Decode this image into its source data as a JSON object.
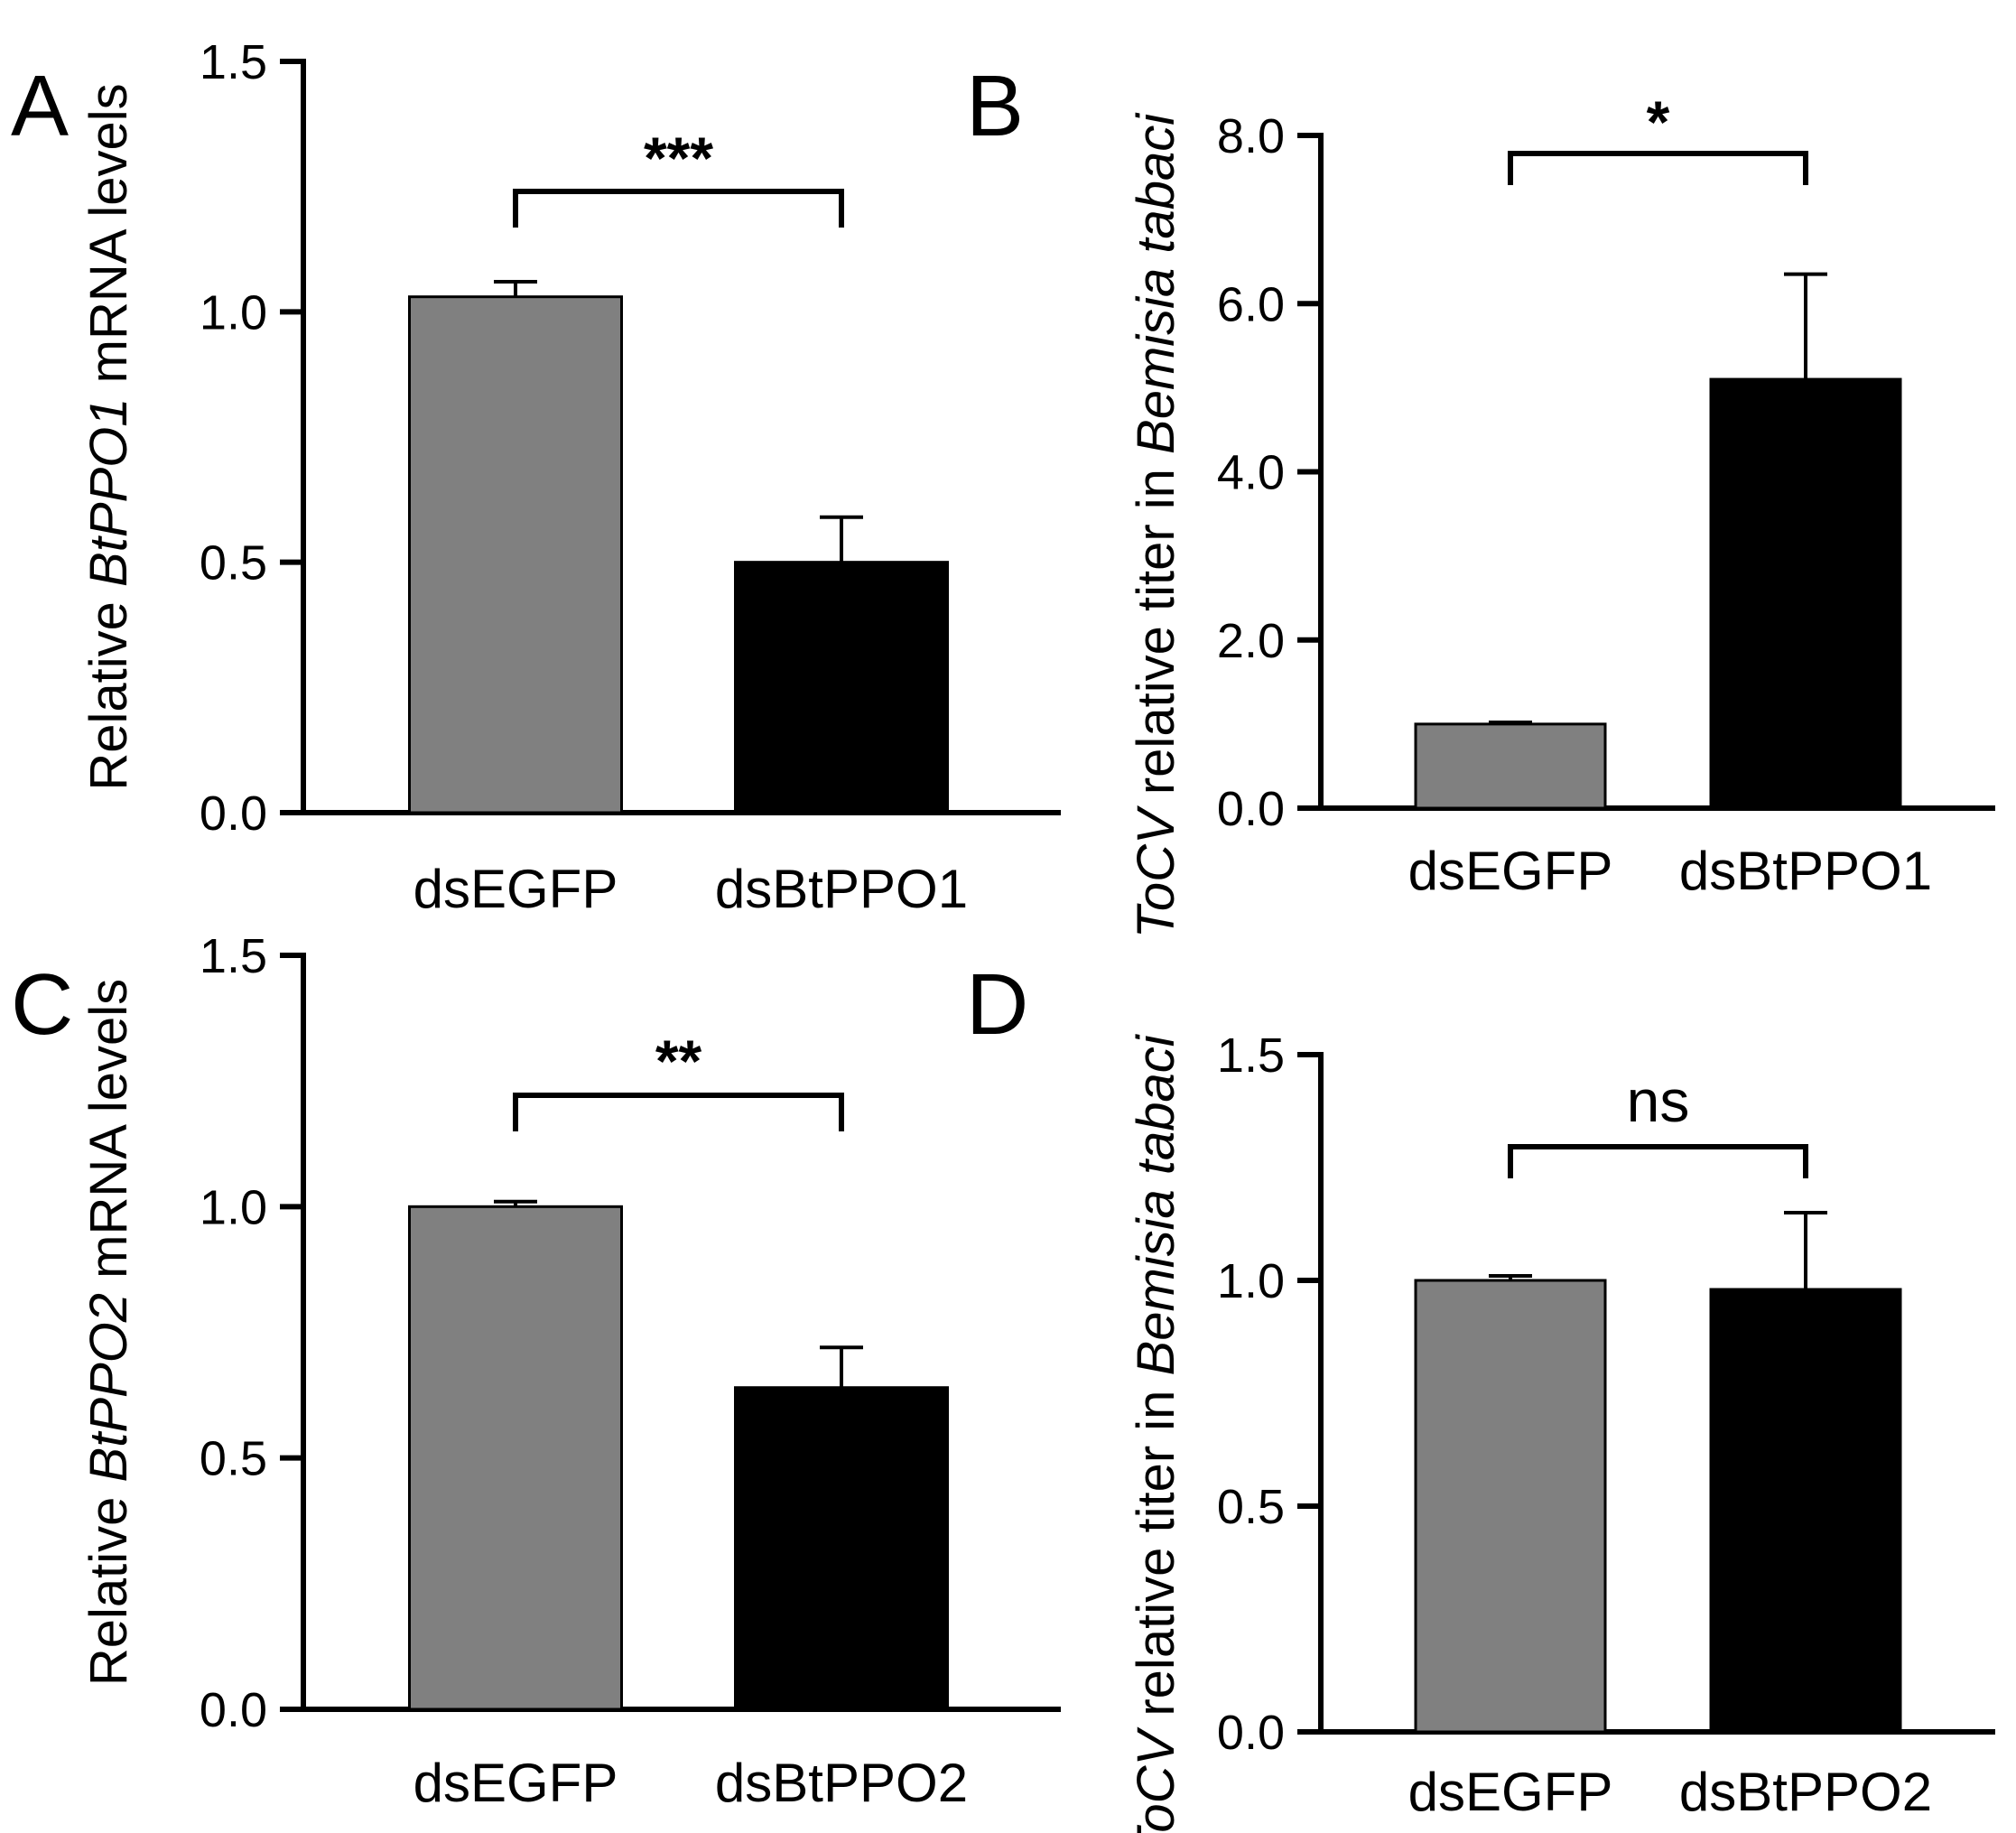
{
  "figure": {
    "panels": [
      {
        "letter": "A",
        "ylabel_parts": [
          {
            "text": "Relative ",
            "italic": false
          },
          {
            "text": "BtPPO1",
            "italic": true
          },
          {
            "text": " mRNA levels",
            "italic": false
          }
        ],
        "significance": "***"
      },
      {
        "letter": "B",
        "ylabel_parts": [
          {
            "text": "ToCV",
            "italic": true
          },
          {
            "text": " relative titer in ",
            "italic": false
          },
          {
            "text": "Bemisia tabaci",
            "italic": true
          }
        ],
        "significance": "*"
      },
      {
        "letter": "C",
        "ylabel_parts": [
          {
            "text": "Relative ",
            "italic": false
          },
          {
            "text": "BtPPO2",
            "italic": true
          },
          {
            "text": " mRNA levels",
            "italic": false
          }
        ],
        "significance": "**"
      },
      {
        "letter": "D",
        "ylabel_parts": [
          {
            "text": "ToCV",
            "italic": true
          },
          {
            "text": " relative titer in ",
            "italic": false
          },
          {
            "text": "Bemisia tabaci",
            "italic": true
          }
        ],
        "significance": "ns"
      }
    ]
  },
  "chart_data": [
    {
      "type": "bar",
      "panel": "A",
      "categories": [
        "dsEGFP",
        "dsBtPPO1"
      ],
      "values": [
        1.03,
        0.5
      ],
      "errors": [
        0.03,
        0.09
      ],
      "colors": [
        "#808080",
        "#000000"
      ],
      "ylim": [
        0,
        1.5
      ],
      "yticks": [
        0,
        0.5,
        1.0,
        1.5
      ],
      "ytick_labels": [
        "0.0",
        "0.5",
        "1.0",
        "1.5"
      ],
      "comparison": {
        "between": [
          0,
          1
        ],
        "label": "***"
      }
    },
    {
      "type": "bar",
      "panel": "B",
      "categories": [
        "dsEGFP",
        "dsBtPPO1"
      ],
      "values": [
        1.0,
        5.1
      ],
      "errors": [
        0.02,
        1.25
      ],
      "colors": [
        "#808080",
        "#000000"
      ],
      "ylim": [
        0,
        8
      ],
      "yticks": [
        0,
        2,
        4,
        6,
        8
      ],
      "ytick_labels": [
        "0.0",
        "2.0",
        "4.0",
        "6.0",
        "8.0"
      ],
      "comparison": {
        "between": [
          0,
          1
        ],
        "label": "*"
      }
    },
    {
      "type": "bar",
      "panel": "C",
      "categories": [
        "dsEGFP",
        "dsBtPPO2"
      ],
      "values": [
        1.0,
        0.64
      ],
      "errors": [
        0.01,
        0.08
      ],
      "colors": [
        "#808080",
        "#000000"
      ],
      "ylim": [
        0,
        1.5
      ],
      "yticks": [
        0,
        0.5,
        1.0,
        1.5
      ],
      "ytick_labels": [
        "0.0",
        "0.5",
        "1.0",
        "1.5"
      ],
      "comparison": {
        "between": [
          0,
          1
        ],
        "label": "**"
      }
    },
    {
      "type": "bar",
      "panel": "D",
      "categories": [
        "dsEGFP",
        "dsBtPPO2"
      ],
      "values": [
        1.0,
        0.98
      ],
      "errors": [
        0.01,
        0.17
      ],
      "colors": [
        "#808080",
        "#000000"
      ],
      "ylim": [
        0,
        1.5
      ],
      "yticks": [
        0,
        0.5,
        1.0,
        1.5
      ],
      "ytick_labels": [
        "0.0",
        "0.5",
        "1.0",
        "1.5"
      ],
      "comparison": {
        "between": [
          0,
          1
        ],
        "label": "ns"
      }
    }
  ]
}
